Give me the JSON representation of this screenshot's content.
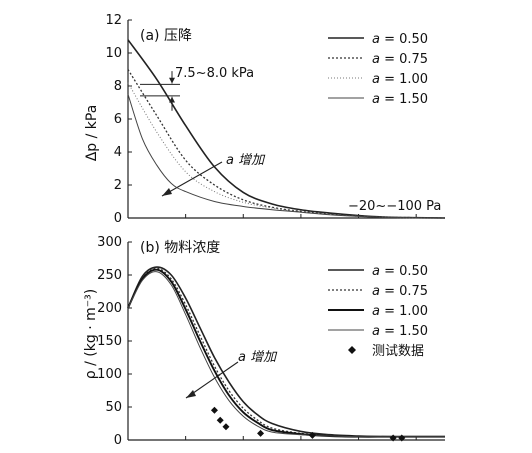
{
  "chart_data": [
    {
      "type": "line",
      "title": "(a) 压降",
      "ylabel": "Δp / kPa",
      "ylim": [
        0,
        12
      ],
      "yticks": [
        0,
        2,
        4,
        6,
        8,
        10,
        12
      ],
      "xlim": [
        0,
        11
      ],
      "annotations": {
        "band": "7.5~8.0 kPa",
        "arrow": "a 增加",
        "tail": "−20~−100 Pa"
      },
      "series": [
        {
          "name": "a = 0.50",
          "style": "solid",
          "x": [
            0,
            1,
            2,
            3,
            4,
            5,
            6,
            7,
            8,
            9,
            10,
            11
          ],
          "y": [
            10.8,
            8.4,
            5.6,
            3.1,
            1.55,
            0.85,
            0.5,
            0.3,
            0.15,
            0.05,
            0.02,
            0.0
          ]
        },
        {
          "name": "a = 0.75",
          "style": "dotted",
          "x": [
            0,
            1,
            2,
            3,
            4,
            5,
            6,
            7,
            8,
            9,
            10,
            11
          ],
          "y": [
            9.0,
            6.2,
            3.5,
            2.0,
            1.1,
            0.65,
            0.4,
            0.25,
            0.12,
            0.05,
            0.02,
            0.0
          ]
        },
        {
          "name": "a = 1.00",
          "style": "dashdot",
          "x": [
            0,
            1,
            2,
            3,
            4,
            5,
            6,
            7,
            8,
            9,
            10,
            11
          ],
          "y": [
            8.2,
            5.2,
            2.8,
            1.6,
            0.95,
            0.6,
            0.38,
            0.22,
            0.1,
            0.04,
            0.01,
            0.0
          ]
        },
        {
          "name": "a = 1.50",
          "style": "solid-light",
          "x": [
            0,
            0.5,
            1,
            1.5,
            2,
            3,
            4,
            5,
            6,
            7,
            8,
            9,
            10,
            11
          ],
          "y": [
            7.5,
            4.8,
            3.2,
            2.1,
            1.6,
            1.0,
            0.7,
            0.5,
            0.35,
            0.2,
            0.1,
            0.04,
            0.01,
            0.0
          ]
        }
      ]
    },
    {
      "type": "line",
      "title": "(b) 物料浓度",
      "ylabel": "ρ / (kg · m⁻³)",
      "ylim": [
        0,
        300
      ],
      "yticks": [
        0,
        50,
        100,
        150,
        200,
        250,
        300
      ],
      "xlim": [
        0,
        11
      ],
      "annotations": {
        "arrow": "a 增加"
      },
      "series": [
        {
          "name": "a = 0.50",
          "style": "solid",
          "x": [
            0,
            0.5,
            1,
            1.5,
            2,
            2.5,
            3,
            3.5,
            4,
            4.5,
            5,
            6,
            7,
            8,
            9,
            10,
            11
          ],
          "y": [
            200,
            248,
            262,
            250,
            215,
            170,
            125,
            88,
            58,
            38,
            25,
            13,
            8,
            6,
            5,
            5,
            5
          ]
        },
        {
          "name": "a = 0.75",
          "style": "dotted",
          "x": [
            0,
            0.5,
            1,
            1.5,
            2,
            2.5,
            3,
            3.5,
            4,
            4.5,
            5,
            6,
            7,
            8,
            9,
            10,
            11
          ],
          "y": [
            200,
            246,
            260,
            244,
            205,
            158,
            112,
            75,
            48,
            30,
            18,
            10,
            7,
            5,
            5,
            5,
            5
          ]
        },
        {
          "name": "a = 1.00",
          "style": "solid-bold",
          "x": [
            0,
            0.5,
            1,
            1.5,
            2,
            2.5,
            3,
            3.5,
            4,
            4.5,
            5,
            6,
            7,
            8,
            9,
            10,
            11
          ],
          "y": [
            200,
            244,
            258,
            240,
            198,
            150,
            105,
            68,
            42,
            26,
            15,
            9,
            6,
            5,
            5,
            5,
            5
          ]
        },
        {
          "name": "a = 1.50",
          "style": "solid-light",
          "x": [
            0,
            0.5,
            1,
            1.5,
            2,
            2.5,
            3,
            3.5,
            4,
            4.5,
            5,
            6,
            7,
            8,
            9,
            10,
            11
          ],
          "y": [
            200,
            242,
            255,
            235,
            190,
            140,
            95,
            60,
            36,
            21,
            12,
            8,
            6,
            5,
            5,
            5,
            5
          ]
        },
        {
          "name": "测试数据",
          "style": "markers",
          "x": [
            3.0,
            3.2,
            3.4,
            4.6,
            6.4,
            9.2,
            9.5
          ],
          "y": [
            45,
            30,
            20,
            10,
            7,
            3,
            3
          ]
        }
      ]
    }
  ]
}
